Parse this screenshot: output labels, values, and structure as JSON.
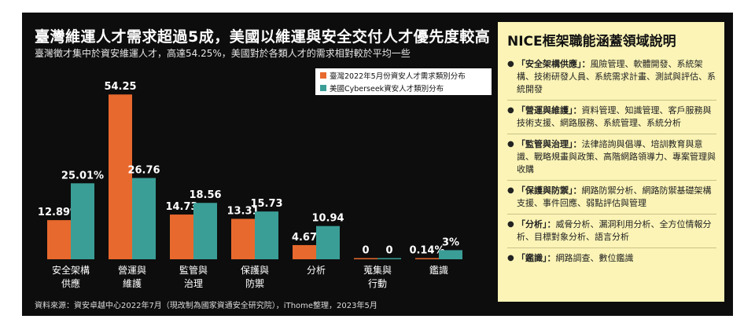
{
  "title": "臺灣維運人才需求超過5成，美國以維運與安全交付人才優先度較高",
  "subtitle": "臺灣徵才集中於資安維運人才，高達54.25%，美國對於各類人才的需求相對較於平均一些",
  "source": "資料來源：資安卓越中心2022年7月（現改制為國家資通安全研究院），iThome整理，2023年5月",
  "colors": {
    "taiwan": "#e8692e",
    "usa": "#3a9e97",
    "background": "#0d0d0d",
    "panel": "#fbf4b6"
  },
  "chart_data": {
    "type": "bar",
    "categories": [
      "安全架構\n供應",
      "營運與\n維護",
      "監管與\n治理",
      "保護與\n防禦",
      "分析",
      "蒐集與\n行動",
      "鑑識"
    ],
    "series": [
      {
        "name": "臺灣2022年5月份資安人才需求類別分布",
        "values": [
          12.89,
          54.25,
          14.73,
          13.31,
          4.67,
          0,
          0.14
        ],
        "labels": [
          "12.89%",
          "54.25",
          "14.73",
          "13.31",
          "4.67",
          "0",
          "0.14%"
        ]
      },
      {
        "name": "美國Cyberseek資安人才類別分布",
        "values": [
          25.01,
          26.76,
          18.56,
          15.73,
          10.94,
          0,
          3
        ],
        "labels": [
          "25.01%",
          "26.76",
          "18.56",
          "15.73",
          "10.94",
          "0",
          "3%"
        ]
      }
    ],
    "ylim": [
      0,
      60
    ],
    "grid": false,
    "legend": "top-right"
  },
  "info_panel": {
    "title": "NICE框架職能涵蓋領域說明",
    "bullet": "●",
    "items": [
      {
        "term": "「安全架構供應」：",
        "desc": "風險管理、軟體開發、系統架構、技術研發人員、系統需求計畫、測試與評估、系統開發"
      },
      {
        "term": "「營運與維護」：",
        "desc": "資料管理、知識管理、客戶服務與技術支援、網路服務、系統管理、系統分析"
      },
      {
        "term": "「監管與治理」：",
        "desc": "法律諮詢與倡導、培訓教育與意識、戰略規畫與政策、高階網路領導力、專案管理與收購"
      },
      {
        "term": "「保護與防禦」：",
        "desc": "網路防禦分析、網路防禦基礎架構支援、事件回應、弱點評估與管理"
      },
      {
        "term": "「分析」：",
        "desc": "威脅分析、漏洞利用分析、全方位情報分析、目標對象分析、語言分析"
      },
      {
        "term": "「鑑識」：",
        "desc": "網路調查、數位鑑識"
      }
    ]
  }
}
